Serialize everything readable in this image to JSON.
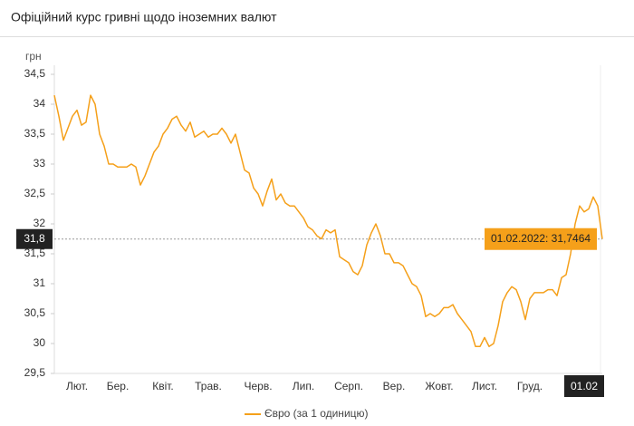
{
  "chart_data": {
    "type": "line",
    "title": "Офіційний курс гривні щодо іноземних валют",
    "y_label": "грн",
    "categories": [
      null,
      null,
      null,
      null,
      null,
      "Лют.",
      null,
      null,
      null,
      null,
      null,
      null,
      null,
      null,
      "Бер.",
      null,
      null,
      null,
      null,
      null,
      null,
      null,
      null,
      null,
      "Квіт.",
      null,
      null,
      null,
      null,
      null,
      null,
      null,
      null,
      null,
      "Трав.",
      null,
      null,
      null,
      null,
      null,
      null,
      null,
      null,
      null,
      null,
      "Черв.",
      null,
      null,
      null,
      null,
      null,
      null,
      null,
      null,
      null,
      "Лип.",
      null,
      null,
      null,
      null,
      null,
      null,
      null,
      null,
      null,
      "Серп.",
      null,
      null,
      null,
      null,
      null,
      null,
      null,
      null,
      null,
      "Вер.",
      null,
      null,
      null,
      null,
      null,
      null,
      null,
      null,
      null,
      "Жовт.",
      null,
      null,
      null,
      null,
      null,
      null,
      null,
      null,
      null,
      "Лист.",
      null,
      null,
      null,
      null,
      null,
      null,
      null,
      null,
      null,
      "Груд.",
      null,
      null,
      null,
      null,
      null,
      null,
      null,
      null,
      null,
      null,
      null,
      null,
      null,
      null,
      null,
      "01.02"
    ],
    "series": [
      {
        "name": "Євро (за 1 одиницю)",
        "color": "#f5a01a",
        "values": [
          34.15,
          33.8,
          33.4,
          33.6,
          33.8,
          33.9,
          33.65,
          33.7,
          34.15,
          34.0,
          33.5,
          33.3,
          33.0,
          33.0,
          32.95,
          32.95,
          32.95,
          33.0,
          32.95,
          32.65,
          32.8,
          33.0,
          33.2,
          33.3,
          33.5,
          33.6,
          33.75,
          33.8,
          33.65,
          33.55,
          33.7,
          33.45,
          33.5,
          33.55,
          33.45,
          33.5,
          33.5,
          33.6,
          33.5,
          33.35,
          33.5,
          33.2,
          32.9,
          32.85,
          32.6,
          32.5,
          32.3,
          32.55,
          32.75,
          32.4,
          32.5,
          32.35,
          32.3,
          32.3,
          32.2,
          32.1,
          31.95,
          31.9,
          31.8,
          31.75,
          31.9,
          31.85,
          31.9,
          31.45,
          31.4,
          31.35,
          31.2,
          31.15,
          31.3,
          31.65,
          31.85,
          32.0,
          31.8,
          31.5,
          31.5,
          31.35,
          31.35,
          31.3,
          31.15,
          31.0,
          30.95,
          30.8,
          30.45,
          30.5,
          30.45,
          30.5,
          30.6,
          30.6,
          30.65,
          30.5,
          30.4,
          30.3,
          30.2,
          29.95,
          29.95,
          30.1,
          29.95,
          30.0,
          30.3,
          30.7,
          30.85,
          30.95,
          30.9,
          30.7,
          30.4,
          30.75,
          30.85,
          30.85,
          30.85,
          30.9,
          30.9,
          30.8,
          31.1,
          31.15,
          31.5,
          32.0,
          32.3,
          32.2,
          32.25,
          32.45,
          32.3,
          31.7464
        ]
      }
    ],
    "ylim": [
      29.5,
      34.5
    ],
    "yticks": [
      {
        "value": 29.5,
        "label": "29,5"
      },
      30,
      {
        "value": 30.5,
        "label": "30,5"
      },
      31,
      {
        "value": 31.5,
        "label": "31,5"
      },
      32,
      {
        "value": 32.5,
        "label": "32,5"
      },
      33,
      {
        "value": 33.5,
        "label": "33,5"
      },
      34,
      {
        "value": 34.5,
        "label": "34,5"
      }
    ],
    "grid": false,
    "legend": "bottom",
    "crosshair_label": "31,8",
    "tooltip": "01.02.2022: 31,7464"
  }
}
